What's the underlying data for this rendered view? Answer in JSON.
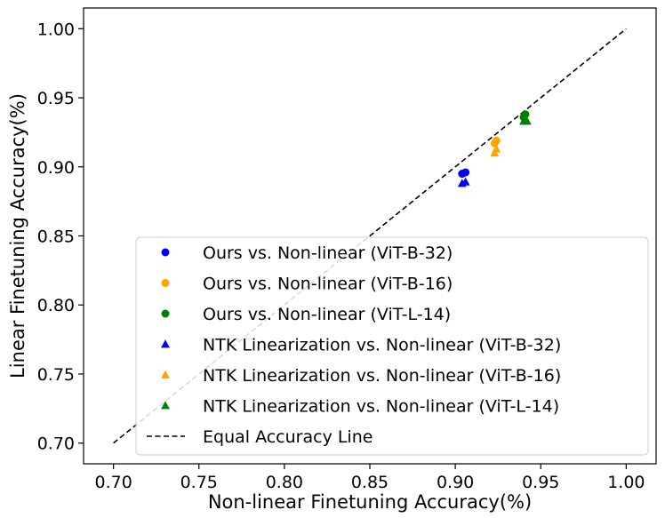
{
  "chart_data": {
    "type": "scatter",
    "title": "",
    "xlabel": "Non-linear Finetuning Accuracy(%)",
    "ylabel": "Linear Finetuning Accuracy(%)",
    "xlim": [
      0.6825,
      1.0175
    ],
    "ylim": [
      0.685,
      1.015
    ],
    "xticks": [
      "0.70",
      "0.75",
      "0.80",
      "0.85",
      "0.90",
      "0.95",
      "1.00"
    ],
    "yticks": [
      "0.70",
      "0.75",
      "0.80",
      "0.85",
      "0.90",
      "0.95",
      "1.00"
    ],
    "xtick_values": [
      0.7,
      0.75,
      0.8,
      0.85,
      0.9,
      0.95,
      1.0
    ],
    "ytick_values": [
      0.7,
      0.75,
      0.8,
      0.85,
      0.9,
      0.95,
      1.0
    ],
    "legend_position": "lower-right",
    "series": [
      {
        "name": "Ours vs. Non-linear (ViT-B-32)",
        "marker": "circle",
        "color": "#0000ff",
        "points": [
          [
            0.904,
            0.895
          ],
          [
            0.906,
            0.896
          ]
        ]
      },
      {
        "name": "Ours vs. Non-linear (ViT-B-16)",
        "marker": "circle",
        "color": "#ffa500",
        "points": [
          [
            0.923,
            0.917
          ],
          [
            0.924,
            0.919
          ]
        ]
      },
      {
        "name": "Ours vs. Non-linear (ViT-L-14)",
        "marker": "circle",
        "color": "#008000",
        "points": [
          [
            0.94,
            0.936
          ],
          [
            0.941,
            0.938
          ]
        ]
      },
      {
        "name": "NTK Linearization vs. Non-linear (ViT-B-32)",
        "marker": "triangle",
        "color": "#0000ff",
        "points": [
          [
            0.904,
            0.888
          ],
          [
            0.906,
            0.889
          ]
        ]
      },
      {
        "name": "NTK Linearization vs. Non-linear (ViT-B-16)",
        "marker": "triangle",
        "color": "#ffa500",
        "points": [
          [
            0.923,
            0.91
          ],
          [
            0.924,
            0.913
          ]
        ]
      },
      {
        "name": "NTK Linearization vs. Non-linear (ViT-L-14)",
        "marker": "triangle",
        "color": "#008000",
        "points": [
          [
            0.94,
            0.933
          ],
          [
            0.942,
            0.933
          ]
        ]
      }
    ],
    "reference_line": {
      "name": "Equal Accuracy Line",
      "style": "dashed",
      "color": "#000000",
      "from": [
        0.7,
        0.7
      ],
      "to": [
        1.0,
        1.0
      ]
    }
  }
}
